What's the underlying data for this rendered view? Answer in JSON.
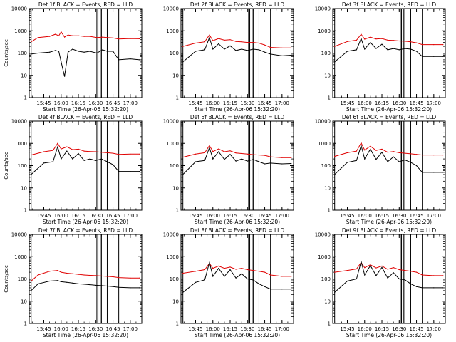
{
  "colors": {
    "events": "#000000",
    "lld": "#e00000",
    "axes": "#000000",
    "background": "#ffffff"
  },
  "chart_data": [
    {
      "type": "line",
      "title": "Det 1f BLACK = Events, RED = LLD",
      "ylabel": "Counts/sec",
      "xlabel": "Start Time (26-Apr-06 15:32:20)",
      "yscale": "log",
      "ylim": [
        1,
        10000
      ],
      "y_ticklabels": [
        "1",
        "10",
        "100",
        "1000",
        "10000"
      ],
      "x_ticklabels": [
        "15:45",
        "16:00",
        "16:15",
        "16:30",
        "16:45",
        "17:00"
      ],
      "vlines": [
        "15:34",
        "16:31",
        "16:32",
        "16:34",
        "16:35",
        "16:40",
        "16:50"
      ],
      "x": [
        "15:34",
        "15:40",
        "15:50",
        "15:55",
        "15:58",
        "16:00",
        "16:03",
        "16:06",
        "16:10",
        "16:15",
        "16:20",
        "16:25",
        "16:31",
        "16:36",
        "16:40",
        "16:45",
        "16:50",
        "17:00",
        "17:08"
      ],
      "series": [
        {
          "name": "LLD",
          "values": [
            320,
            500,
            560,
            700,
            600,
            900,
            520,
            650,
            600,
            600,
            560,
            560,
            500,
            520,
            500,
            480,
            430,
            450,
            440
          ]
        },
        {
          "name": "Events",
          "values": [
            90,
            100,
            110,
            130,
            120,
            40,
            9,
            110,
            150,
            120,
            110,
            120,
            100,
            140,
            120,
            120,
            50,
            55,
            50
          ]
        }
      ]
    },
    {
      "type": "line",
      "title": "Det 2f BLACK = Events, RED = LLD",
      "ylabel": "",
      "xlabel": "Start Time (26-Apr-06 15:32:20)",
      "yscale": "log",
      "ylim": [
        1,
        10000
      ],
      "y_ticklabels": [
        "1",
        "10",
        "100",
        "1000",
        "10000"
      ],
      "x_ticklabels": [
        "15:45",
        "16:00",
        "16:15",
        "16:30",
        "16:45",
        "17:00"
      ],
      "vlines": [
        "15:34",
        "16:31",
        "16:32",
        "16:34",
        "16:35",
        "16:40",
        "16:50"
      ],
      "x": [
        "15:34",
        "15:45",
        "15:53",
        "15:57",
        "16:00",
        "16:05",
        "16:10",
        "16:15",
        "16:20",
        "16:25",
        "16:30",
        "16:35",
        "16:40",
        "16:45",
        "16:50",
        "17:00",
        "17:08"
      ],
      "series": [
        {
          "name": "LLD",
          "values": [
            200,
            280,
            320,
            650,
            360,
            450,
            380,
            400,
            330,
            320,
            300,
            300,
            280,
            230,
            180,
            170,
            170
          ]
        },
        {
          "name": "Events",
          "values": [
            40,
            120,
            140,
            500,
            150,
            260,
            150,
            210,
            130,
            150,
            130,
            150,
            140,
            110,
            90,
            75,
            80
          ]
        }
      ]
    },
    {
      "type": "line",
      "title": "Det 3f BLACK = Events, RED = LLD",
      "ylabel": "",
      "xlabel": "Start Time (26-Apr-06 15:32:20)",
      "yscale": "log",
      "ylim": [
        1,
        10000
      ],
      "y_ticklabels": [
        "1",
        "10",
        "100",
        "1000",
        "10000"
      ],
      "x_ticklabels": [
        "15:45",
        "16:00",
        "16:15",
        "16:30",
        "16:45",
        "17:00"
      ],
      "vlines": [
        "15:34",
        "16:31",
        "16:32",
        "16:34",
        "16:35",
        "16:40",
        "16:50"
      ],
      "x": [
        "15:34",
        "15:45",
        "15:53",
        "15:57",
        "16:00",
        "16:05",
        "16:10",
        "16:15",
        "16:20",
        "16:25",
        "16:30",
        "16:35",
        "16:40",
        "16:45",
        "16:50",
        "17:00",
        "17:08"
      ],
      "series": [
        {
          "name": "LLD",
          "values": [
            200,
            330,
            380,
            700,
            420,
            520,
            430,
            450,
            380,
            370,
            350,
            340,
            320,
            290,
            240,
            240,
            240
          ]
        },
        {
          "name": "Events",
          "values": [
            40,
            120,
            140,
            450,
            150,
            300,
            160,
            250,
            140,
            160,
            140,
            160,
            150,
            120,
            70,
            70,
            70
          ]
        }
      ]
    },
    {
      "type": "line",
      "title": "Det 4f BLACK = Events, RED = LLD",
      "ylabel": "Counts/sec",
      "xlabel": "Start Time (26-Apr-06 15:32:20)",
      "yscale": "log",
      "ylim": [
        1,
        10000
      ],
      "y_ticklabels": [
        "1",
        "10",
        "100",
        "1000",
        "10000"
      ],
      "x_ticklabels": [
        "15:45",
        "16:00",
        "16:15",
        "16:30",
        "16:45",
        "17:00"
      ],
      "vlines": [
        "15:34",
        "16:31",
        "16:32",
        "16:34",
        "16:35",
        "16:40",
        "16:50"
      ],
      "x": [
        "15:34",
        "15:45",
        "15:53",
        "15:57",
        "16:00",
        "16:05",
        "16:10",
        "16:15",
        "16:20",
        "16:25",
        "16:30",
        "16:35",
        "16:40",
        "16:45",
        "16:50",
        "17:00",
        "17:08"
      ],
      "series": [
        {
          "name": "LLD",
          "values": [
            300,
            420,
            480,
            1000,
            560,
            700,
            520,
            550,
            450,
            430,
            420,
            400,
            380,
            360,
            320,
            330,
            330
          ]
        },
        {
          "name": "Events",
          "values": [
            40,
            130,
            150,
            700,
            200,
            450,
            200,
            350,
            170,
            200,
            170,
            200,
            150,
            110,
            55,
            55,
            55
          ]
        }
      ]
    },
    {
      "type": "line",
      "title": "Det 5f BLACK = Events, RED = LLD",
      "ylabel": "",
      "xlabel": "Start Time (26-Apr-06 15:32:20)",
      "yscale": "log",
      "ylim": [
        1,
        10000
      ],
      "y_ticklabels": [
        "1",
        "10",
        "100",
        "1000",
        "10000"
      ],
      "x_ticklabels": [
        "15:45",
        "16:00",
        "16:15",
        "16:30",
        "16:45",
        "17:00"
      ],
      "vlines": [
        "15:34",
        "16:31",
        "16:32",
        "16:34",
        "16:35",
        "16:40",
        "16:50"
      ],
      "x": [
        "15:34",
        "15:45",
        "15:53",
        "15:57",
        "16:00",
        "16:05",
        "16:10",
        "16:15",
        "16:20",
        "16:25",
        "16:30",
        "16:35",
        "16:40",
        "16:45",
        "16:50",
        "17:00",
        "17:08"
      ],
      "series": [
        {
          "name": "LLD",
          "values": [
            240,
            330,
            380,
            800,
            430,
            560,
            420,
            460,
            370,
            350,
            330,
            310,
            300,
            290,
            250,
            230,
            230
          ]
        },
        {
          "name": "Events",
          "values": [
            40,
            150,
            170,
            650,
            200,
            420,
            190,
            320,
            160,
            200,
            160,
            190,
            150,
            120,
            130,
            120,
            125
          ]
        }
      ]
    },
    {
      "type": "line",
      "title": "Det 6f BLACK = Events, RED = LLD",
      "ylabel": "",
      "xlabel": "Start Time (26-Apr-06 15:32:20)",
      "yscale": "log",
      "ylim": [
        1,
        10000
      ],
      "y_ticklabels": [
        "1",
        "10",
        "100",
        "1000",
        "10000"
      ],
      "x_ticklabels": [
        "15:45",
        "16:00",
        "16:15",
        "16:30",
        "16:45",
        "17:00"
      ],
      "vlines": [
        "15:34",
        "16:31",
        "16:32",
        "16:34",
        "16:35",
        "16:40",
        "16:50"
      ],
      "x": [
        "15:34",
        "15:45",
        "15:53",
        "15:57",
        "16:00",
        "16:05",
        "16:10",
        "16:15",
        "16:20",
        "16:25",
        "16:30",
        "16:35",
        "16:40",
        "16:45",
        "16:50",
        "17:00",
        "17:08"
      ],
      "series": [
        {
          "name": "LLD",
          "values": [
            260,
            380,
            450,
            1050,
            500,
            750,
            480,
            550,
            400,
            430,
            380,
            360,
            340,
            320,
            300,
            300,
            300
          ]
        },
        {
          "name": "Events",
          "values": [
            40,
            140,
            170,
            800,
            200,
            550,
            190,
            400,
            150,
            250,
            150,
            180,
            140,
            100,
            50,
            50,
            50
          ]
        }
      ]
    },
    {
      "type": "line",
      "title": "Det 7f BLACK = Events, RED = LLD",
      "ylabel": "Counts/sec",
      "xlabel": "Start Time (26-Apr-06 15:32:20)",
      "yscale": "log",
      "ylim": [
        1,
        10000
      ],
      "y_ticklabels": [
        "1",
        "10",
        "100",
        "1000",
        "10000"
      ],
      "x_ticklabels": [
        "15:45",
        "16:00",
        "16:15",
        "16:30",
        "16:45",
        "17:00"
      ],
      "vlines": [
        "15:34",
        "16:31",
        "16:32",
        "16:34",
        "16:35",
        "16:40",
        "16:50"
      ],
      "x": [
        "15:34",
        "15:40",
        "15:50",
        "15:57",
        "16:00",
        "16:05",
        "16:10",
        "16:15",
        "16:20",
        "16:25",
        "16:30",
        "16:35",
        "16:40",
        "16:45",
        "16:50",
        "17:00",
        "17:08"
      ],
      "series": [
        {
          "name": "LLD",
          "values": [
            80,
            150,
            220,
            240,
            200,
            180,
            170,
            160,
            150,
            145,
            140,
            135,
            130,
            125,
            115,
            110,
            110
          ]
        },
        {
          "name": "Events",
          "values": [
            30,
            60,
            80,
            85,
            75,
            70,
            65,
            60,
            58,
            55,
            52,
            50,
            48,
            45,
            42,
            40,
            40
          ]
        }
      ]
    },
    {
      "type": "line",
      "title": "Det 8f BLACK = Events, RED = LLD",
      "ylabel": "",
      "xlabel": "Start Time (26-Apr-06 15:32:20)",
      "yscale": "log",
      "ylim": [
        1,
        10000
      ],
      "y_ticklabels": [
        "1",
        "10",
        "100",
        "1000",
        "10000"
      ],
      "x_ticklabels": [
        "15:45",
        "16:00",
        "16:15",
        "16:30",
        "16:45",
        "17:00"
      ],
      "vlines": [
        "15:34",
        "16:31",
        "16:32",
        "16:34",
        "16:35",
        "16:40",
        "16:50"
      ],
      "x": [
        "15:34",
        "15:45",
        "15:53",
        "15:57",
        "16:00",
        "16:05",
        "16:10",
        "16:15",
        "16:20",
        "16:25",
        "16:30",
        "16:35",
        "16:40",
        "16:45",
        "16:50",
        "17:00",
        "17:08"
      ],
      "series": [
        {
          "name": "LLD",
          "values": [
            180,
            220,
            260,
            500,
            300,
            380,
            300,
            340,
            270,
            300,
            260,
            240,
            220,
            200,
            150,
            130,
            130
          ]
        },
        {
          "name": "Events",
          "values": [
            25,
            70,
            90,
            550,
            130,
            300,
            130,
            260,
            110,
            170,
            100,
            90,
            60,
            45,
            35,
            35,
            35
          ]
        }
      ]
    },
    {
      "type": "line",
      "title": "Det 9f BLACK = Events, RED = LLD",
      "ylabel": "",
      "xlabel": "Start Time (26-Apr-06 15:32:20)",
      "yscale": "log",
      "ylim": [
        1,
        10000
      ],
      "y_ticklabels": [
        "1",
        "10",
        "100",
        "1000",
        "10000"
      ],
      "x_ticklabels": [
        "15:45",
        "16:00",
        "16:15",
        "16:30",
        "16:45",
        "17:00"
      ],
      "vlines": [
        "15:34",
        "16:31",
        "16:32",
        "16:34",
        "16:35",
        "16:40",
        "16:50"
      ],
      "x": [
        "15:34",
        "15:45",
        "15:53",
        "15:57",
        "16:00",
        "16:05",
        "16:10",
        "16:15",
        "16:20",
        "16:25",
        "16:30",
        "16:35",
        "16:40",
        "16:45",
        "16:50",
        "17:00",
        "17:08"
      ],
      "series": [
        {
          "name": "LLD",
          "values": [
            200,
            240,
            280,
            550,
            320,
            430,
            310,
            380,
            270,
            320,
            260,
            240,
            220,
            200,
            150,
            140,
            140
          ]
        },
        {
          "name": "Events",
          "values": [
            25,
            80,
            100,
            600,
            150,
            400,
            140,
            330,
            110,
            190,
            100,
            90,
            60,
            45,
            40,
            40,
            40
          ]
        }
      ]
    }
  ]
}
